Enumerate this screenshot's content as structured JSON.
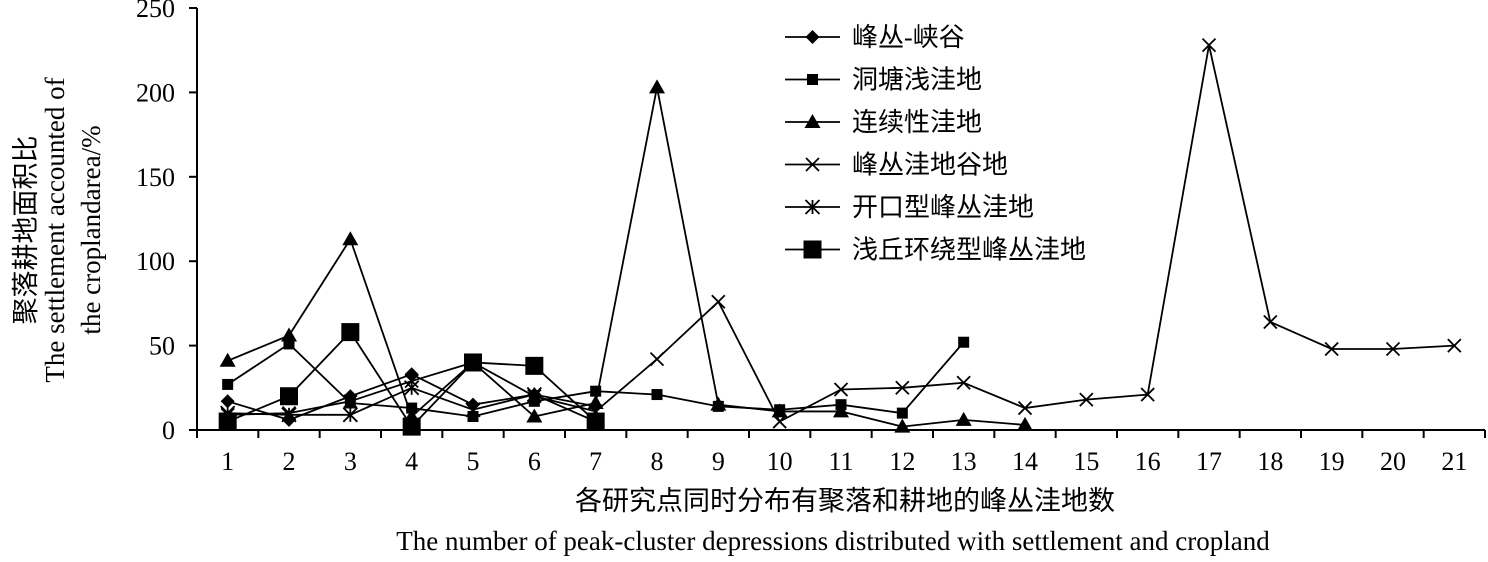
{
  "chart_data": {
    "type": "line",
    "xlabel": "各研究点同时分布有聚落和耕地的峰丛洼地数",
    "xlabel_en": "The number of peak-cluster depressions distributed with settlement and cropland",
    "ylabel": "聚落耕地面积比",
    "ylabel_en_line1": "The settlement accounted of",
    "ylabel_en_line2": "the croplandarea/%",
    "ylim": [
      0,
      250
    ],
    "yticks": [
      0,
      50,
      100,
      150,
      200,
      250
    ],
    "xlim": [
      1,
      21
    ],
    "xticks": [
      1,
      2,
      3,
      4,
      5,
      6,
      7,
      8,
      9,
      10,
      11,
      12,
      13,
      14,
      15,
      16,
      17,
      18,
      19,
      20,
      21
    ],
    "grid": false,
    "legend_position": "top-center",
    "series": [
      {
        "name": "峰丛-峡谷",
        "marker": "diamond",
        "x": [
          1,
          2,
          3,
          4,
          5,
          6,
          7
        ],
        "values": [
          17,
          6,
          20,
          33,
          15,
          21,
          14
        ]
      },
      {
        "name": "洞塘浅洼地",
        "marker": "square",
        "x": [
          1,
          2,
          3,
          4,
          5,
          6,
          7,
          8,
          9,
          10,
          11,
          12,
          13
        ],
        "values": [
          27,
          51,
          16,
          13,
          8,
          17,
          23,
          21,
          14,
          12,
          15,
          10,
          52
        ]
      },
      {
        "name": "连续性洼地",
        "marker": "triangle",
        "x": [
          1,
          2,
          3,
          4,
          5,
          6,
          7,
          8,
          9,
          10,
          11,
          12,
          13,
          14
        ],
        "values": [
          41,
          56,
          113,
          8,
          40,
          8,
          16,
          203,
          15,
          11,
          11,
          2,
          6,
          3
        ]
      },
      {
        "name": "峰丛洼地谷地",
        "marker": "x",
        "x": [
          1,
          2,
          3,
          4,
          5,
          6,
          7,
          8,
          9,
          10,
          11,
          12,
          13,
          14,
          15,
          16,
          17,
          18,
          19,
          20,
          21
        ],
        "values": [
          9,
          10,
          17,
          29,
          40,
          20,
          11,
          42,
          76,
          5,
          24,
          25,
          28,
          13,
          18,
          21,
          228,
          64,
          48,
          48,
          50
        ]
      },
      {
        "name": "开口型峰丛洼地",
        "marker": "star",
        "x": [
          1,
          2,
          3,
          4,
          5,
          6,
          7
        ],
        "values": [
          10,
          9,
          9,
          25,
          12,
          21,
          5
        ]
      },
      {
        "name": "浅丘环绕型峰丛洼地",
        "marker": "square-large",
        "x": [
          1,
          2,
          3,
          4,
          5,
          6,
          7
        ],
        "values": [
          5,
          20,
          58,
          2,
          40,
          38,
          5
        ]
      }
    ]
  }
}
